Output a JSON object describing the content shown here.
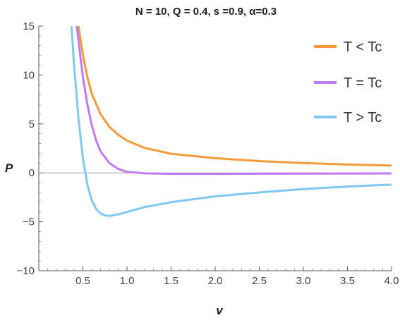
{
  "chart_data": {
    "type": "line",
    "title": "N = 10, Q = 0.4, s =0.9, α=0.3",
    "xlabel": "v",
    "ylabel": "P",
    "xlim": [
      0.0,
      4.0
    ],
    "ylim": [
      -10,
      15
    ],
    "xticks": [
      0.5,
      1.0,
      1.5,
      2.0,
      2.5,
      3.0,
      3.5,
      4.0
    ],
    "xtick_labels": [
      "0.5",
      "1.0",
      "1.5",
      "2.0",
      "2.5",
      "3.0",
      "3.5",
      "4.0"
    ],
    "yticks": [
      -10,
      -5,
      0,
      5,
      10,
      15
    ],
    "ytick_labels": [
      "−10",
      "−5",
      "0",
      "5",
      "10",
      "15"
    ],
    "legend_position": "top-right",
    "series": [
      {
        "name": "T < Tc",
        "color": "#F39A3A",
        "x": [
          0.45,
          0.48,
          0.5,
          0.55,
          0.6,
          0.7,
          0.8,
          0.9,
          1.0,
          1.2,
          1.5,
          2.0,
          2.5,
          3.0,
          3.5,
          4.0
        ],
        "y": [
          15.0,
          13.2,
          12.0,
          9.8,
          8.1,
          6.0,
          4.7,
          3.9,
          3.3,
          2.55,
          1.95,
          1.5,
          1.2,
          1.0,
          0.85,
          0.75
        ]
      },
      {
        "name": "T = Tc",
        "color": "#C07BF0",
        "x": [
          0.43,
          0.45,
          0.48,
          0.5,
          0.55,
          0.6,
          0.65,
          0.7,
          0.8,
          0.9,
          1.0,
          1.2,
          1.5,
          2.0,
          3.0,
          4.0
        ],
        "y": [
          15.0,
          13.5,
          11.2,
          9.8,
          7.0,
          4.9,
          3.3,
          2.2,
          1.0,
          0.4,
          0.1,
          -0.05,
          -0.1,
          -0.1,
          -0.08,
          -0.06
        ],
        "_note": ""
      },
      {
        "name": "T > Tc",
        "color": "#7FC8F4",
        "x": [
          0.37,
          0.4,
          0.45,
          0.5,
          0.55,
          0.6,
          0.65,
          0.7,
          0.75,
          0.8,
          0.9,
          1.0,
          1.2,
          1.5,
          2.0,
          2.5,
          3.0,
          3.5,
          4.0
        ],
        "y": [
          15.0,
          11.0,
          5.5,
          1.5,
          -1.2,
          -2.8,
          -3.7,
          -4.15,
          -4.35,
          -4.4,
          -4.25,
          -4.0,
          -3.5,
          -3.0,
          -2.4,
          -2.0,
          -1.65,
          -1.4,
          -1.2
        ]
      }
    ]
  }
}
